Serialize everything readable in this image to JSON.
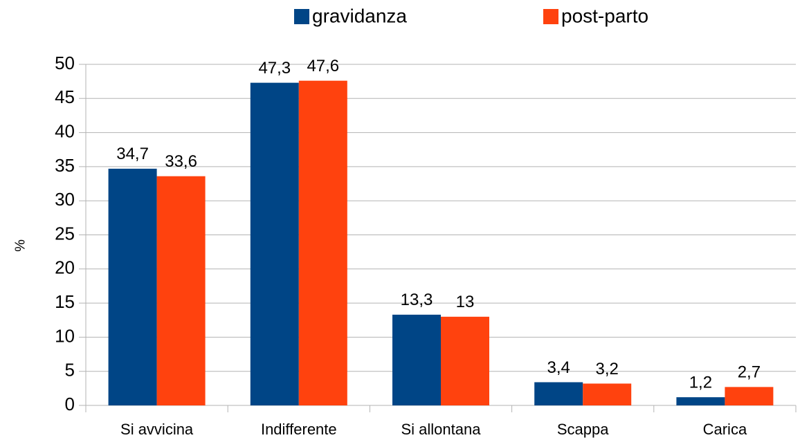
{
  "chart_data": {
    "type": "bar",
    "y_label": "%",
    "categories": [
      "Si avvicina",
      "Indifferente",
      "Si allontana",
      "Scappa",
      "Carica"
    ],
    "series": [
      {
        "name": "gravidanza",
        "color": "#004586",
        "values": [
          34.7,
          47.3,
          13.3,
          3.4,
          1.2
        ],
        "value_labels": [
          "34,7",
          "47,3",
          "13,3",
          "3,4",
          "1,2"
        ]
      },
      {
        "name": "post-parto",
        "color": "#ff420e",
        "values": [
          33.6,
          47.6,
          13,
          3.2,
          2.7
        ],
        "value_labels": [
          "33,6",
          "47,6",
          "13",
          "3,2",
          "2,7"
        ]
      }
    ],
    "ylim": [
      0,
      50
    ],
    "yticks": [
      0,
      5,
      10,
      15,
      20,
      25,
      30,
      35,
      40,
      45,
      50
    ],
    "grid": true,
    "legend": "top"
  }
}
